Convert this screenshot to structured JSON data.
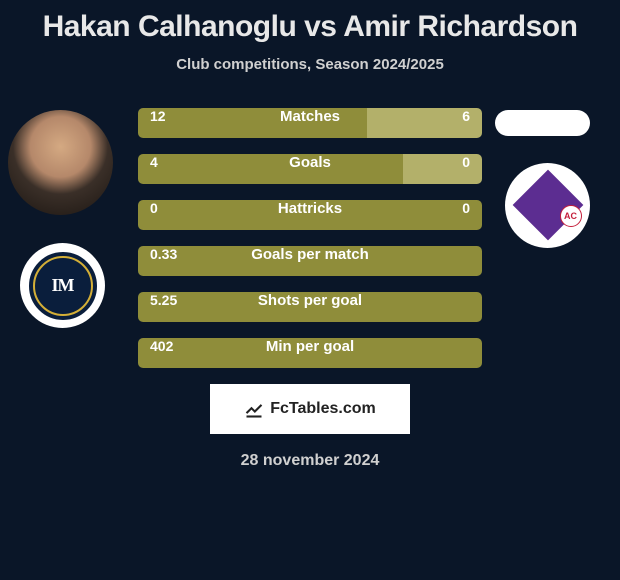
{
  "header": {
    "title": "Hakan Calhanoglu vs Amir Richardson",
    "subtitle": "Club competitions, Season 2024/2025"
  },
  "players": {
    "left": {
      "name": "Hakan Calhanoglu",
      "club_badge_bg": "#ffffff",
      "club_logo_text": "IM"
    },
    "right": {
      "name": "Amir Richardson",
      "club_badge_bg": "#ffffff",
      "club_logo_text": "AC"
    }
  },
  "colors": {
    "background": "#0a1628",
    "bar_left": "#8f8d3a",
    "bar_right": "#b3b06a",
    "text": "#ffffff",
    "subtitle_text": "#d0d0d0",
    "fiorentina_purple": "#5c2d91",
    "fiorentina_red": "#c41e3a",
    "inter_navy": "#0a1e3c",
    "inter_gold": "#d4af37"
  },
  "stats": [
    {
      "label": "Matches",
      "left_value": "12",
      "right_value": "6",
      "left_num": 12,
      "right_num": 6,
      "left_pct": 66.67,
      "right_pct": 33.33
    },
    {
      "label": "Goals",
      "left_value": "4",
      "right_value": "0",
      "left_num": 4,
      "right_num": 0,
      "left_pct": 77,
      "right_pct": 23
    },
    {
      "label": "Hattricks",
      "left_value": "0",
      "right_value": "0",
      "left_num": 0,
      "right_num": 0,
      "left_pct": 100,
      "right_pct": 0
    },
    {
      "label": "Goals per match",
      "left_value": "0.33",
      "right_value": "",
      "left_num": 0.33,
      "right_num": 0,
      "left_pct": 100,
      "right_pct": 0
    },
    {
      "label": "Shots per goal",
      "left_value": "5.25",
      "right_value": "",
      "left_num": 5.25,
      "right_num": 0,
      "left_pct": 100,
      "right_pct": 0
    },
    {
      "label": "Min per goal",
      "left_value": "402",
      "right_value": "",
      "left_num": 402,
      "right_num": 0,
      "left_pct": 100,
      "right_pct": 0
    }
  ],
  "footer": {
    "brand": "FcTables.com",
    "date": "28 november 2024"
  }
}
